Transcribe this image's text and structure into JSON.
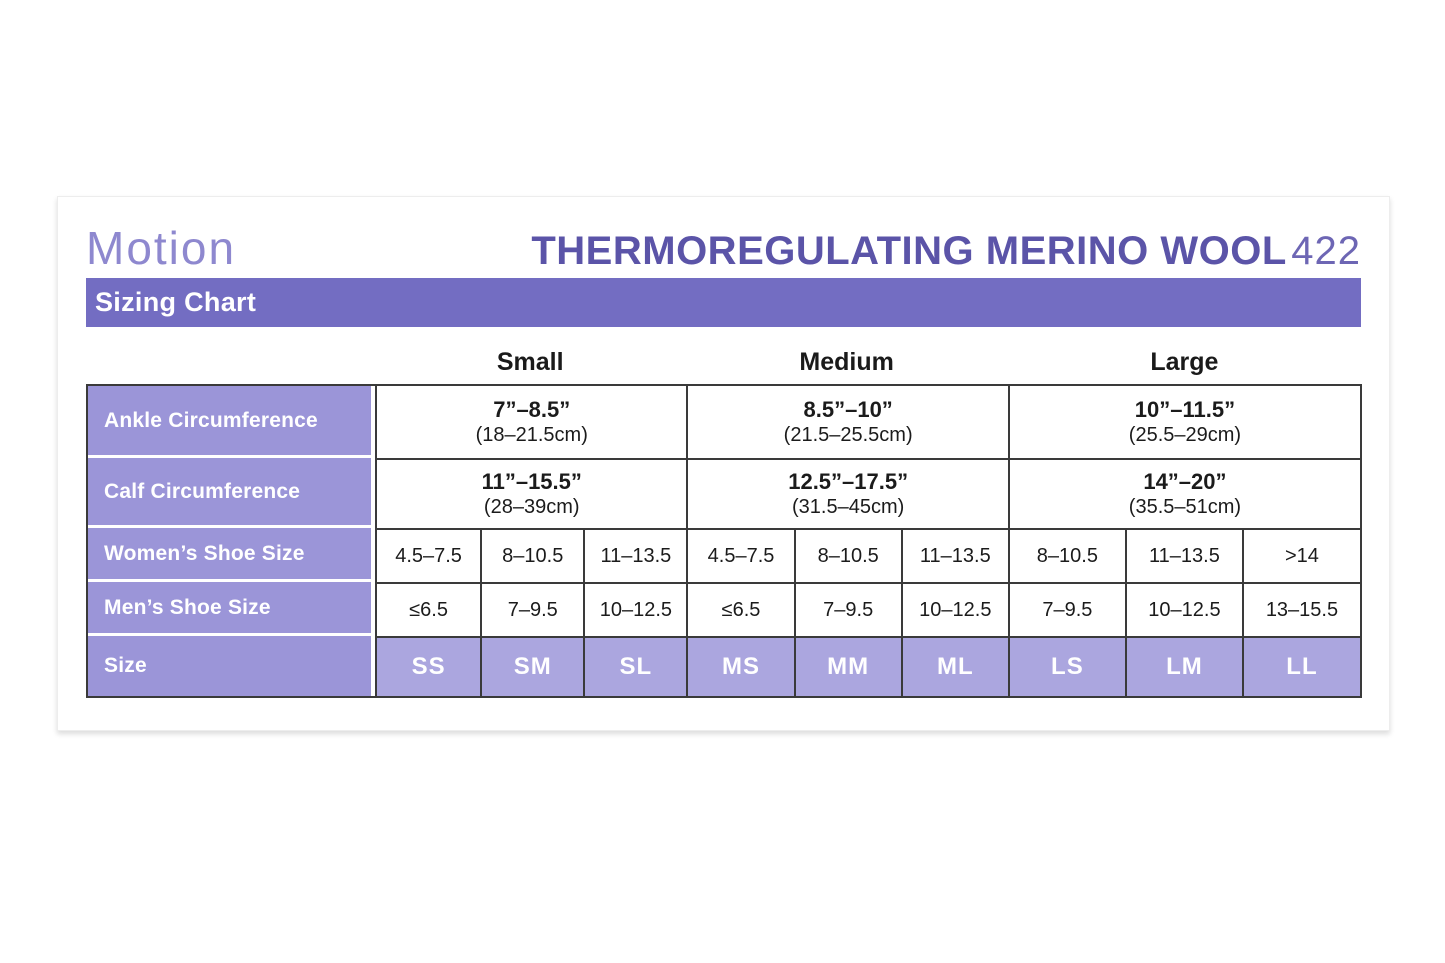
{
  "header": {
    "brand": "Motion",
    "title": "THERMOREGULATING MERINO WOOL",
    "model": "422",
    "bar_label": "Sizing Chart"
  },
  "size_groups": [
    "Small",
    "Medium",
    "Large"
  ],
  "colors": {
    "title_purple": "#5b54a8",
    "brand_purple": "#8e88cf",
    "bar_purple": "#736dc2",
    "row_label_purple": "#9b95d8",
    "size_cell_purple": "#aba6df",
    "grid_border": "#3a3a3a"
  },
  "table": {
    "rows": {
      "ankle": {
        "label": "Ankle Circumference",
        "values": [
          {
            "in": "7”–8.5”",
            "cm": "(18–21.5cm)"
          },
          {
            "in": "8.5”–10”",
            "cm": "(21.5–25.5cm)"
          },
          {
            "in": "10”–11.5”",
            "cm": "(25.5–29cm)"
          }
        ]
      },
      "calf": {
        "label": "Calf Circumference",
        "values": [
          {
            "in": "11”–15.5”",
            "cm": "(28–39cm)"
          },
          {
            "in": "12.5”–17.5”",
            "cm": "(31.5–45cm)"
          },
          {
            "in": "14”–20”",
            "cm": "(35.5–51cm)"
          }
        ]
      },
      "womens": {
        "label": "Women’s Shoe Size",
        "values": [
          "4.5–7.5",
          "8–10.5",
          "11–13.5",
          "4.5–7.5",
          "8–10.5",
          "11–13.5",
          "8–10.5",
          "11–13.5",
          ">14"
        ]
      },
      "mens": {
        "label": "Men’s Shoe Size",
        "values": [
          "≤6.5",
          "7–9.5",
          "10–12.5",
          "≤6.5",
          "7–9.5",
          "10–12.5",
          "7–9.5",
          "10–12.5",
          "13–15.5"
        ]
      },
      "size": {
        "label": "Size",
        "values": [
          "SS",
          "SM",
          "SL",
          "MS",
          "MM",
          "ML",
          "LS",
          "LM",
          "LL"
        ]
      }
    }
  }
}
